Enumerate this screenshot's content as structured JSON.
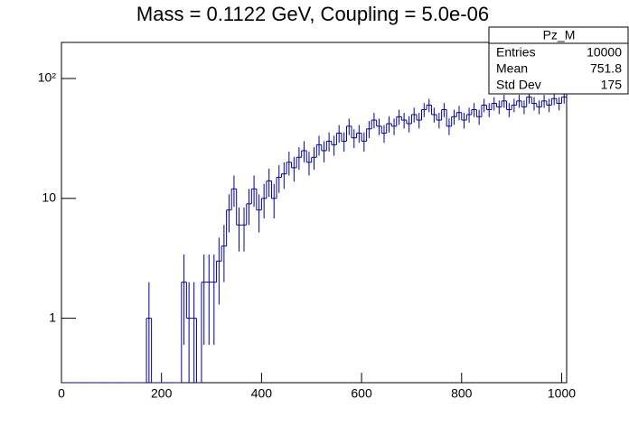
{
  "chart_data": {
    "type": "histogram",
    "title": "Mass = 0.1122 GeV, Coupling = 5.0e-06",
    "bins": [
      0,
      10,
      20,
      30,
      40,
      50,
      60,
      70,
      80,
      90,
      100,
      110,
      120,
      130,
      140,
      150,
      160,
      170,
      180,
      190,
      200,
      210,
      220,
      230,
      240,
      250,
      260,
      270,
      280,
      290,
      300,
      310,
      320,
      330,
      340,
      350,
      360,
      370,
      380,
      390,
      400,
      410,
      420,
      430,
      440,
      450,
      460,
      470,
      480,
      490,
      500,
      510,
      520,
      530,
      540,
      550,
      560,
      570,
      580,
      590,
      600,
      610,
      620,
      630,
      640,
      650,
      660,
      670,
      680,
      690,
      700,
      710,
      720,
      730,
      740,
      750,
      760,
      770,
      780,
      790,
      800,
      810,
      820,
      830,
      840,
      850,
      860,
      870,
      880,
      890,
      900,
      910,
      920,
      930,
      940,
      950,
      960,
      970,
      980,
      990,
      1000,
      1010
    ],
    "values": [
      0,
      0,
      0,
      0,
      0,
      0,
      0,
      0,
      0,
      0,
      0,
      0,
      0,
      0,
      0,
      0,
      0,
      1,
      0,
      0,
      0,
      0,
      0,
      0,
      2,
      1,
      1,
      0,
      2,
      2,
      2,
      3,
      4,
      8,
      12,
      6,
      6,
      9,
      12,
      8,
      10,
      14,
      10,
      15,
      16,
      20,
      18,
      22,
      25,
      20,
      22,
      28,
      25,
      30,
      28,
      35,
      30,
      40,
      32,
      35,
      30,
      38,
      45,
      40,
      35,
      42,
      40,
      48,
      45,
      42,
      50,
      45,
      55,
      60,
      50,
      45,
      55,
      40,
      48,
      52,
      45,
      50,
      55,
      48,
      60,
      55,
      62,
      58,
      65,
      55,
      60,
      65,
      58,
      70,
      62,
      58,
      65,
      60,
      68,
      62,
      70
    ],
    "errors": [
      0,
      0,
      0,
      0,
      0,
      0,
      0,
      0,
      0,
      0,
      0,
      0,
      0,
      0,
      0,
      0,
      0,
      1,
      0,
      0,
      0,
      0,
      0,
      0,
      1.4,
      1,
      1,
      0,
      1.4,
      1.4,
      1.4,
      1.7,
      2,
      2.8,
      3.5,
      2.4,
      2.4,
      3,
      3.5,
      2.8,
      3.2,
      3.7,
      3.2,
      3.9,
      4,
      4.5,
      4.2,
      4.7,
      5,
      4.5,
      4.7,
      5.3,
      5,
      5.5,
      5.3,
      5.9,
      5.5,
      6.3,
      5.7,
      5.9,
      5.5,
      6.2,
      6.7,
      6.3,
      5.9,
      6.5,
      6.3,
      6.9,
      6.7,
      6.5,
      7.1,
      6.7,
      7.4,
      7.7,
      7.1,
      6.7,
      7.4,
      6.3,
      6.9,
      7.2,
      6.7,
      7.1,
      7.4,
      6.9,
      7.7,
      7.4,
      7.9,
      7.6,
      8.1,
      7.4,
      7.7,
      8.1,
      7.6,
      8.4,
      7.9,
      7.6,
      8.1,
      7.7,
      8.2,
      7.9,
      8.4
    ],
    "color": "#000099",
    "xlim": [
      0,
      1010
    ],
    "xticks": [
      0,
      200,
      400,
      600,
      800,
      1000
    ],
    "ylim": [
      0.29,
      200
    ],
    "ylog": true,
    "yticks": [
      1,
      10,
      {
        "value": 100,
        "label": "10²"
      }
    ],
    "stats": {
      "title": "Pz_M",
      "rows": [
        {
          "label": "Entries",
          "value": 10000
        },
        {
          "label": "Mean",
          "value": 751.8
        },
        {
          "label": "Std Dev",
          "value": 175
        }
      ]
    }
  }
}
